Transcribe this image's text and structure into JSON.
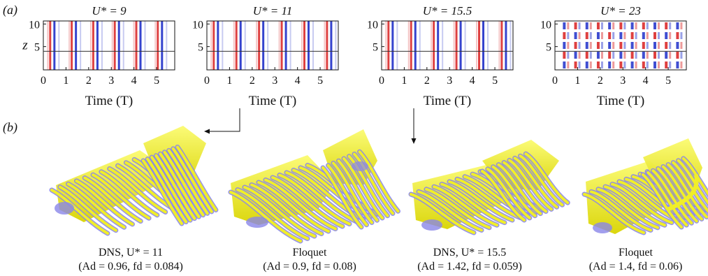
{
  "panel_a_label": "(a)",
  "panel_b_label": "(b)",
  "colors": {
    "red": "#d81f1f",
    "blue": "#1f2fc9",
    "yellow": "#f0ee2a",
    "lilac": "#8a86e8"
  },
  "heatmaps": [
    {
      "title": "U* = 9",
      "xlabel": "Time (T)",
      "ylabel": "z",
      "yticks": [
        "5",
        "10"
      ],
      "xticks": [
        "0",
        "1",
        "2",
        "3",
        "4",
        "5"
      ],
      "period": 0.95,
      "rows": 1
    },
    {
      "title": "U* = 11",
      "xlabel": "Time (T)",
      "ylabel": "",
      "yticks": [
        "5",
        "10"
      ],
      "xticks": [
        "0",
        "1",
        "2",
        "3",
        "4",
        "5"
      ],
      "period": 1.0,
      "rows": 1
    },
    {
      "title": "U* = 15.5",
      "xlabel": "Time (T)",
      "ylabel": "",
      "yticks": [
        "5",
        "10"
      ],
      "xticks": [
        "0",
        "1",
        "2",
        "3",
        "4",
        "5"
      ],
      "period": 1.0,
      "rows": 1
    },
    {
      "title": "U* = 23",
      "xlabel": "Time (T)",
      "ylabel": "",
      "yticks": [
        "5",
        "10"
      ],
      "xticks": [
        "0",
        "1",
        "2",
        "3",
        "4",
        "5"
      ],
      "period": 0.5,
      "rows": 5
    }
  ],
  "captions": [
    {
      "line1": "DNS, U* = 11",
      "line2": "(Ad = 0.96, fd = 0.084)"
    },
    {
      "line1": "Floquet",
      "line2": "(Ad = 0.9, fd = 0.08)"
    },
    {
      "line1": "DNS, U* = 15.5",
      "line2": "(Ad = 1.42, fd = 0.059)"
    },
    {
      "line1": "Floquet",
      "line2": "(Ad = 1.4, fd = 0.06)"
    }
  ]
}
